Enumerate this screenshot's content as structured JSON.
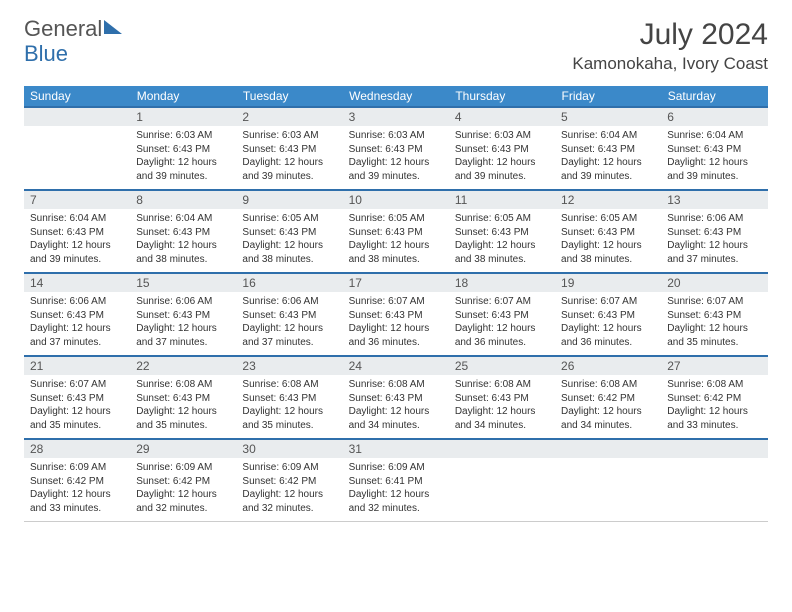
{
  "logo": {
    "word1": "General",
    "word2": "Blue"
  },
  "title": "July 2024",
  "location": "Kamonokaha, Ivory Coast",
  "colors": {
    "header_bg": "#3b89c9",
    "accent": "#2f6fab",
    "daynum_bg": "#e9ecee",
    "text": "#333333"
  },
  "day_labels": [
    "Sunday",
    "Monday",
    "Tuesday",
    "Wednesday",
    "Thursday",
    "Friday",
    "Saturday"
  ],
  "weeks": [
    [
      {
        "n": "",
        "sr": "",
        "ss": "",
        "dl": ""
      },
      {
        "n": "1",
        "sr": "Sunrise: 6:03 AM",
        "ss": "Sunset: 6:43 PM",
        "dl": "Daylight: 12 hours and 39 minutes."
      },
      {
        "n": "2",
        "sr": "Sunrise: 6:03 AM",
        "ss": "Sunset: 6:43 PM",
        "dl": "Daylight: 12 hours and 39 minutes."
      },
      {
        "n": "3",
        "sr": "Sunrise: 6:03 AM",
        "ss": "Sunset: 6:43 PM",
        "dl": "Daylight: 12 hours and 39 minutes."
      },
      {
        "n": "4",
        "sr": "Sunrise: 6:03 AM",
        "ss": "Sunset: 6:43 PM",
        "dl": "Daylight: 12 hours and 39 minutes."
      },
      {
        "n": "5",
        "sr": "Sunrise: 6:04 AM",
        "ss": "Sunset: 6:43 PM",
        "dl": "Daylight: 12 hours and 39 minutes."
      },
      {
        "n": "6",
        "sr": "Sunrise: 6:04 AM",
        "ss": "Sunset: 6:43 PM",
        "dl": "Daylight: 12 hours and 39 minutes."
      }
    ],
    [
      {
        "n": "7",
        "sr": "Sunrise: 6:04 AM",
        "ss": "Sunset: 6:43 PM",
        "dl": "Daylight: 12 hours and 39 minutes."
      },
      {
        "n": "8",
        "sr": "Sunrise: 6:04 AM",
        "ss": "Sunset: 6:43 PM",
        "dl": "Daylight: 12 hours and 38 minutes."
      },
      {
        "n": "9",
        "sr": "Sunrise: 6:05 AM",
        "ss": "Sunset: 6:43 PM",
        "dl": "Daylight: 12 hours and 38 minutes."
      },
      {
        "n": "10",
        "sr": "Sunrise: 6:05 AM",
        "ss": "Sunset: 6:43 PM",
        "dl": "Daylight: 12 hours and 38 minutes."
      },
      {
        "n": "11",
        "sr": "Sunrise: 6:05 AM",
        "ss": "Sunset: 6:43 PM",
        "dl": "Daylight: 12 hours and 38 minutes."
      },
      {
        "n": "12",
        "sr": "Sunrise: 6:05 AM",
        "ss": "Sunset: 6:43 PM",
        "dl": "Daylight: 12 hours and 38 minutes."
      },
      {
        "n": "13",
        "sr": "Sunrise: 6:06 AM",
        "ss": "Sunset: 6:43 PM",
        "dl": "Daylight: 12 hours and 37 minutes."
      }
    ],
    [
      {
        "n": "14",
        "sr": "Sunrise: 6:06 AM",
        "ss": "Sunset: 6:43 PM",
        "dl": "Daylight: 12 hours and 37 minutes."
      },
      {
        "n": "15",
        "sr": "Sunrise: 6:06 AM",
        "ss": "Sunset: 6:43 PM",
        "dl": "Daylight: 12 hours and 37 minutes."
      },
      {
        "n": "16",
        "sr": "Sunrise: 6:06 AM",
        "ss": "Sunset: 6:43 PM",
        "dl": "Daylight: 12 hours and 37 minutes."
      },
      {
        "n": "17",
        "sr": "Sunrise: 6:07 AM",
        "ss": "Sunset: 6:43 PM",
        "dl": "Daylight: 12 hours and 36 minutes."
      },
      {
        "n": "18",
        "sr": "Sunrise: 6:07 AM",
        "ss": "Sunset: 6:43 PM",
        "dl": "Daylight: 12 hours and 36 minutes."
      },
      {
        "n": "19",
        "sr": "Sunrise: 6:07 AM",
        "ss": "Sunset: 6:43 PM",
        "dl": "Daylight: 12 hours and 36 minutes."
      },
      {
        "n": "20",
        "sr": "Sunrise: 6:07 AM",
        "ss": "Sunset: 6:43 PM",
        "dl": "Daylight: 12 hours and 35 minutes."
      }
    ],
    [
      {
        "n": "21",
        "sr": "Sunrise: 6:07 AM",
        "ss": "Sunset: 6:43 PM",
        "dl": "Daylight: 12 hours and 35 minutes."
      },
      {
        "n": "22",
        "sr": "Sunrise: 6:08 AM",
        "ss": "Sunset: 6:43 PM",
        "dl": "Daylight: 12 hours and 35 minutes."
      },
      {
        "n": "23",
        "sr": "Sunrise: 6:08 AM",
        "ss": "Sunset: 6:43 PM",
        "dl": "Daylight: 12 hours and 35 minutes."
      },
      {
        "n": "24",
        "sr": "Sunrise: 6:08 AM",
        "ss": "Sunset: 6:43 PM",
        "dl": "Daylight: 12 hours and 34 minutes."
      },
      {
        "n": "25",
        "sr": "Sunrise: 6:08 AM",
        "ss": "Sunset: 6:43 PM",
        "dl": "Daylight: 12 hours and 34 minutes."
      },
      {
        "n": "26",
        "sr": "Sunrise: 6:08 AM",
        "ss": "Sunset: 6:42 PM",
        "dl": "Daylight: 12 hours and 34 minutes."
      },
      {
        "n": "27",
        "sr": "Sunrise: 6:08 AM",
        "ss": "Sunset: 6:42 PM",
        "dl": "Daylight: 12 hours and 33 minutes."
      }
    ],
    [
      {
        "n": "28",
        "sr": "Sunrise: 6:09 AM",
        "ss": "Sunset: 6:42 PM",
        "dl": "Daylight: 12 hours and 33 minutes."
      },
      {
        "n": "29",
        "sr": "Sunrise: 6:09 AM",
        "ss": "Sunset: 6:42 PM",
        "dl": "Daylight: 12 hours and 32 minutes."
      },
      {
        "n": "30",
        "sr": "Sunrise: 6:09 AM",
        "ss": "Sunset: 6:42 PM",
        "dl": "Daylight: 12 hours and 32 minutes."
      },
      {
        "n": "31",
        "sr": "Sunrise: 6:09 AM",
        "ss": "Sunset: 6:41 PM",
        "dl": "Daylight: 12 hours and 32 minutes."
      },
      {
        "n": "",
        "sr": "",
        "ss": "",
        "dl": ""
      },
      {
        "n": "",
        "sr": "",
        "ss": "",
        "dl": ""
      },
      {
        "n": "",
        "sr": "",
        "ss": "",
        "dl": ""
      }
    ]
  ]
}
